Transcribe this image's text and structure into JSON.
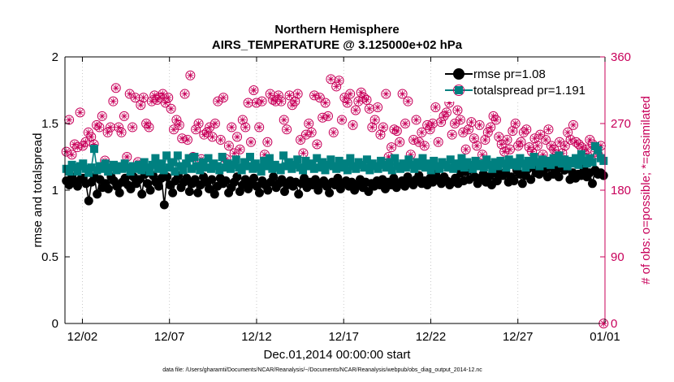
{
  "chart_data": {
    "type": "line",
    "title": "Northern Hemisphere",
    "subtitle": "AIRS_TEMPERATURE @ 3.125000e+02 hPa",
    "xlabel": "Dec.01,2014 00:00:00 start",
    "ylabel": "rmse and totalspread",
    "ylabel_right": "# of obs: o=possible; *=assimilated",
    "xlim": [
      0,
      31
    ],
    "ylim": [
      0,
      2
    ],
    "ylim_right": [
      0,
      360
    ],
    "x_ticks": [
      1,
      6,
      11,
      16,
      21,
      26,
      31
    ],
    "x_tick_labels": [
      "12/02",
      "12/07",
      "12/12",
      "12/17",
      "12/22",
      "12/27",
      "01/01"
    ],
    "y_ticks": [
      "0",
      "0.5",
      "1",
      "1.5",
      "2"
    ],
    "y_ticks_right": [
      "0",
      "90",
      "180",
      "270",
      "360"
    ],
    "footnote": "data file: /Users/gharamti/Documents/NCAR/Reanalysis/~/Documents/NCAR/Reanalysis/webpub/obs_diag_output_2014-12.nc",
    "colors": {
      "rmse": "#000000",
      "spread": "#008080",
      "obs": "#c8005a",
      "axis": "#000000"
    },
    "series": [
      {
        "name": "rmse pr=1.08",
        "y": [
          1.07,
          1.04,
          1.1,
          1.06,
          1.03,
          1.08,
          1.09,
          1.05,
          0.92,
          1.06,
          1.1,
          0.97,
          1.08,
          1.02,
          1.05,
          1.01,
          1.1,
          1.07,
          1.03,
          0.98,
          1.06,
          1.09,
          1.04,
          1.01,
          1.1,
          1.05,
          1.08,
          0.97,
          1.12,
          1.05,
          1.0,
          1.11,
          1.06,
          1.03,
          1.09,
          0.89,
          1.1,
          1.04,
          0.98,
          1.07,
          1.11,
          1.02,
          1.06,
          1.09,
          0.99,
          1.05,
          1.08,
          0.98,
          1.04,
          1.1,
          1.06,
          1.01,
          1.08,
          0.97,
          1.03,
          1.09,
          1.05,
          1.07,
          0.98,
          1.02,
          1.06,
          1.1,
          0.99,
          1.04,
          1.08,
          1.01,
          1.05,
          1.09,
          1.03,
          0.98,
          1.07,
          1.04,
          1.0,
          1.06,
          1.1,
          1.02,
          1.05,
          1.08,
          0.99,
          1.04,
          1.07,
          1.03,
          1.06,
          0.97,
          1.05,
          1.09,
          1.02,
          1.06,
          1.04,
          1.08,
          1.0,
          1.05,
          1.07,
          1.03,
          0.98,
          1.06,
          1.04,
          1.09,
          1.01,
          1.05,
          1.07,
          1.03,
          1.06,
          1.0,
          1.04,
          1.08,
          1.02,
          1.06,
          0.99,
          1.05,
          1.03,
          1.07,
          1.04,
          1.08,
          1.01,
          1.06,
          1.04,
          1.09,
          1.02,
          1.05,
          1.07,
          1.03,
          1.1,
          1.06,
          1.04,
          1.08,
          1.11,
          1.05,
          1.07,
          1.04,
          1.09,
          1.06,
          1.12,
          1.08,
          1.05,
          1.1,
          1.07,
          1.04,
          1.06,
          1.09,
          1.05,
          1.13,
          1.07,
          1.14,
          1.08,
          1.16,
          1.1,
          1.05,
          1.09,
          1.12,
          1.06,
          1.1,
          1.04,
          1.13,
          1.07,
          1.12,
          1.11,
          1.14,
          1.06,
          1.1,
          1.07,
          1.15,
          1.12,
          1.05,
          1.11,
          1.16,
          1.08,
          1.17,
          1.13,
          1.12,
          1.14,
          1.16,
          1.1,
          1.18,
          1.12,
          1.15,
          1.1,
          1.21,
          1.15,
          1.19,
          1.08,
          1.13,
          1.09,
          1.12,
          1.11,
          1.16,
          1.1,
          1.13,
          1.05,
          1.15,
          1.12,
          1.13,
          1.11
        ]
      },
      {
        "name": "totalspread pr=1.191",
        "y": [
          1.16,
          1.14,
          1.19,
          1.17,
          1.14,
          1.18,
          1.2,
          1.16,
          1.13,
          1.17,
          1.31,
          1.15,
          1.18,
          1.16,
          1.2,
          1.14,
          1.17,
          1.19,
          1.15,
          1.18,
          1.16,
          1.2,
          1.17,
          1.14,
          1.18,
          1.16,
          1.19,
          1.15,
          1.21,
          1.17,
          1.14,
          1.19,
          1.24,
          1.16,
          1.2,
          1.15,
          1.26,
          1.17,
          1.21,
          1.14,
          1.26,
          1.18,
          1.15,
          1.2,
          1.24,
          1.16,
          1.25,
          1.18,
          1.15,
          1.21,
          1.17,
          1.24,
          1.16,
          1.2,
          1.18,
          1.15,
          1.25,
          1.17,
          1.2,
          1.16,
          1.19,
          1.23,
          1.17,
          1.15,
          1.21,
          1.18,
          1.25,
          1.16,
          1.2,
          1.17,
          1.14,
          1.22,
          1.18,
          1.24,
          1.16,
          1.19,
          1.17,
          1.15,
          1.26,
          1.18,
          1.21,
          1.16,
          1.19,
          1.23,
          1.17,
          1.15,
          1.22,
          1.18,
          1.2,
          1.16,
          1.24,
          1.17,
          1.21,
          1.15,
          1.19,
          1.23,
          1.18,
          1.16,
          1.22,
          1.17,
          1.2,
          1.15,
          1.24,
          1.18,
          1.16,
          1.21,
          1.19,
          1.17,
          1.23,
          1.15,
          1.2,
          1.18,
          1.16,
          1.22,
          1.19,
          1.17,
          1.21,
          1.15,
          1.24,
          1.18,
          1.16,
          1.2,
          1.17,
          1.23,
          1.19,
          1.16,
          1.21,
          1.18,
          1.24,
          1.17,
          1.2,
          1.15,
          1.22,
          1.18,
          1.16,
          1.21,
          1.19,
          1.17,
          1.23,
          1.16,
          1.2,
          1.18,
          1.24,
          1.17,
          1.21,
          1.19,
          1.16,
          1.22,
          1.18,
          1.2,
          1.17,
          1.23,
          1.19,
          1.16,
          1.21,
          1.18,
          1.22,
          1.2,
          1.17,
          1.23,
          1.19,
          1.21,
          1.18,
          1.24,
          1.2,
          1.17,
          1.22,
          1.19,
          1.25,
          1.21,
          1.18,
          1.23,
          1.2,
          1.22,
          1.19,
          1.24,
          1.21,
          1.26,
          1.2,
          1.23,
          1.18,
          1.22,
          1.2,
          1.24,
          1.19,
          1.27,
          1.22,
          1.2,
          1.24,
          1.21,
          1.33,
          1.3,
          1.24,
          1.22
        ]
      },
      {
        "name": "# of obs possible",
        "axis": "right",
        "y": [
          232,
          275,
          228,
          242,
          238,
          285,
          240,
          245,
          258,
          252,
          242,
          268,
          265,
          280,
          220,
          258,
          265,
          300,
          318,
          265,
          258,
          280,
          225,
          310,
          265,
          305,
          218,
          295,
          305,
          270,
          265,
          300,
          308,
          302,
          305,
          310,
          298,
          305,
          290,
          262,
          275,
          268,
          250,
          310,
          248,
          335,
          225,
          262,
          270,
          222,
          255,
          258,
          265,
          252,
          270,
          300,
          248,
          305,
          222,
          240,
          265,
          230,
          252,
          235,
          275,
          265,
          298,
          245,
          315,
          298,
          265,
          300,
          228,
          245,
          310,
          302,
          300,
          308,
          300,
          275,
          262,
          308,
          295,
          300,
          310,
          248,
          230,
          255,
          270,
          258,
          308,
          242,
          305,
          278,
          298,
          280,
          330,
          258,
          320,
          328,
          275,
          305,
          298,
          310,
          268,
          288,
          300,
          312,
          305,
          302,
          290,
          265,
          275,
          292,
          255,
          265,
          310,
          225,
          238,
          262,
          260,
          245,
          310,
          270,
          300,
          228,
          248,
          275,
          245,
          258,
          240,
          268,
          262,
          270,
          292,
          245,
          272,
          280,
          285,
          298,
          255,
          270,
          288,
          275,
          258,
          235,
          262,
          272,
          250,
          240,
          268,
          228,
          248,
          258,
          265,
          280,
          275,
          252,
          242,
          232,
          248,
          235,
          260,
          270,
          240,
          245,
          258,
          262,
          238,
          232,
          250,
          240,
          255,
          228,
          248,
          262,
          240,
          235,
          228,
          245,
          230,
          240,
          258,
          248,
          268,
          245,
          242,
          238,
          230,
          235,
          248,
          242,
          232,
          228,
          240,
          0
        ]
      }
    ]
  },
  "legend": {
    "rmse_label": "rmse pr=1.08",
    "spread_label": "totalspread pr=1.191"
  }
}
